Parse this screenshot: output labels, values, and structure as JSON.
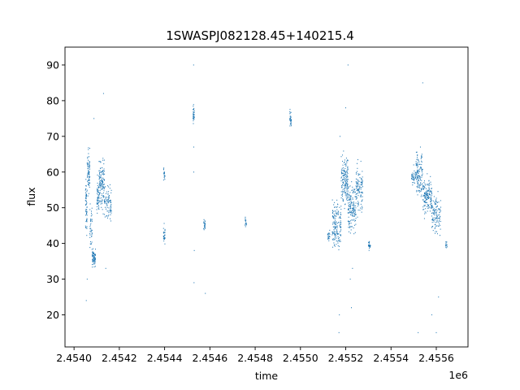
{
  "chart_data": {
    "type": "scatter",
    "title": "1SWASPJ082128.45+140215.4",
    "xlabel": "time",
    "ylabel": "flux",
    "x_offset_label": "1e6",
    "x_scale": 1000000,
    "xlim": [
      2.45396,
      2.45574
    ],
    "ylim": [
      11,
      95
    ],
    "x_ticks": [
      2.454,
      2.4542,
      2.4544,
      2.4546,
      2.4548,
      2.455,
      2.4552,
      2.4554,
      2.4556
    ],
    "x_tick_labels": [
      "2.4540",
      "2.4542",
      "2.4544",
      "2.4546",
      "2.4548",
      "2.4550",
      "2.4552",
      "2.4554",
      "2.4556"
    ],
    "y_ticks": [
      20,
      30,
      40,
      50,
      60,
      70,
      80,
      90
    ],
    "y_tick_labels": [
      "20",
      "30",
      "40",
      "50",
      "60",
      "70",
      "80",
      "90"
    ],
    "grid": false,
    "marker_color": "#1f77b4",
    "clusters": [
      {
        "x_start": 2454050,
        "x_end": 2454058,
        "y_center": 50,
        "y_spread": 6,
        "count": 60
      },
      {
        "x_start": 2454058,
        "x_end": 2454070,
        "y_center": 60,
        "y_spread": 5,
        "count": 70
      },
      {
        "x_start": 2454070,
        "x_end": 2454080,
        "y_center": 45,
        "y_spread": 5,
        "count": 40
      },
      {
        "x_start": 2454080,
        "x_end": 2454095,
        "y_center": 36,
        "y_spread": 2,
        "count": 70
      },
      {
        "x_start": 2454100,
        "x_end": 2454110,
        "y_center": 53,
        "y_spread": 4,
        "count": 50
      },
      {
        "x_start": 2454110,
        "x_end": 2454135,
        "y_center": 57,
        "y_spread": 6,
        "count": 130
      },
      {
        "x_start": 2454135,
        "x_end": 2454165,
        "y_center": 51,
        "y_spread": 4,
        "count": 80
      },
      {
        "x_start": 2454395,
        "x_end": 2454402,
        "y_center": 59,
        "y_spread": 1.5,
        "count": 20
      },
      {
        "x_start": 2454395,
        "x_end": 2454402,
        "y_center": 42,
        "y_spread": 2.5,
        "count": 30
      },
      {
        "x_start": 2454525,
        "x_end": 2454532,
        "y_center": 76,
        "y_spread": 2,
        "count": 35
      },
      {
        "x_start": 2454572,
        "x_end": 2454579,
        "y_center": 45.5,
        "y_spread": 1.5,
        "count": 25
      },
      {
        "x_start": 2454755,
        "x_end": 2454762,
        "y_center": 46,
        "y_spread": 1.2,
        "count": 15
      },
      {
        "x_start": 2454952,
        "x_end": 2454960,
        "y_center": 75,
        "y_spread": 2,
        "count": 30
      },
      {
        "x_start": 2455120,
        "x_end": 2455130,
        "y_center": 42,
        "y_spread": 1.5,
        "count": 20
      },
      {
        "x_start": 2455140,
        "x_end": 2455180,
        "y_center": 45,
        "y_spread": 5,
        "count": 150
      },
      {
        "x_start": 2455180,
        "x_end": 2455210,
        "y_center": 58,
        "y_spread": 6,
        "count": 160
      },
      {
        "x_start": 2455210,
        "x_end": 2455245,
        "y_center": 50,
        "y_spread": 6,
        "count": 150
      },
      {
        "x_start": 2455245,
        "x_end": 2455275,
        "y_center": 55,
        "y_spread": 5,
        "count": 110
      },
      {
        "x_start": 2455300,
        "x_end": 2455310,
        "y_center": 39.5,
        "y_spread": 1,
        "count": 25
      },
      {
        "x_start": 2455490,
        "x_end": 2455510,
        "y_center": 58.5,
        "y_spread": 1.5,
        "count": 40
      },
      {
        "x_start": 2455510,
        "x_end": 2455540,
        "y_center": 60,
        "y_spread": 5,
        "count": 130
      },
      {
        "x_start": 2455540,
        "x_end": 2455580,
        "y_center": 53,
        "y_spread": 4,
        "count": 160
      },
      {
        "x_start": 2455580,
        "x_end": 2455620,
        "y_center": 48,
        "y_spread": 4,
        "count": 120
      },
      {
        "x_start": 2455640,
        "x_end": 2455648,
        "y_center": 39.5,
        "y_spread": 1,
        "count": 15
      }
    ],
    "outliers": [
      [
        2454054,
        24
      ],
      [
        2454058,
        30
      ],
      [
        2454088,
        75
      ],
      [
        2454130,
        82
      ],
      [
        2454140,
        33
      ],
      [
        2454528,
        90
      ],
      [
        2454529,
        67
      ],
      [
        2454529,
        60
      ],
      [
        2454530,
        29
      ],
      [
        2454531,
        38
      ],
      [
        2454580,
        26
      ],
      [
        2455170,
        15
      ],
      [
        2455172,
        20
      ],
      [
        2455175,
        70
      ],
      [
        2455200,
        78
      ],
      [
        2455210,
        90
      ],
      [
        2455220,
        30
      ],
      [
        2455225,
        22
      ],
      [
        2455230,
        33
      ],
      [
        2455520,
        15
      ],
      [
        2455540,
        85
      ],
      [
        2455580,
        20
      ],
      [
        2455600,
        15
      ],
      [
        2455610,
        25
      ],
      [
        2455500,
        62
      ]
    ]
  }
}
